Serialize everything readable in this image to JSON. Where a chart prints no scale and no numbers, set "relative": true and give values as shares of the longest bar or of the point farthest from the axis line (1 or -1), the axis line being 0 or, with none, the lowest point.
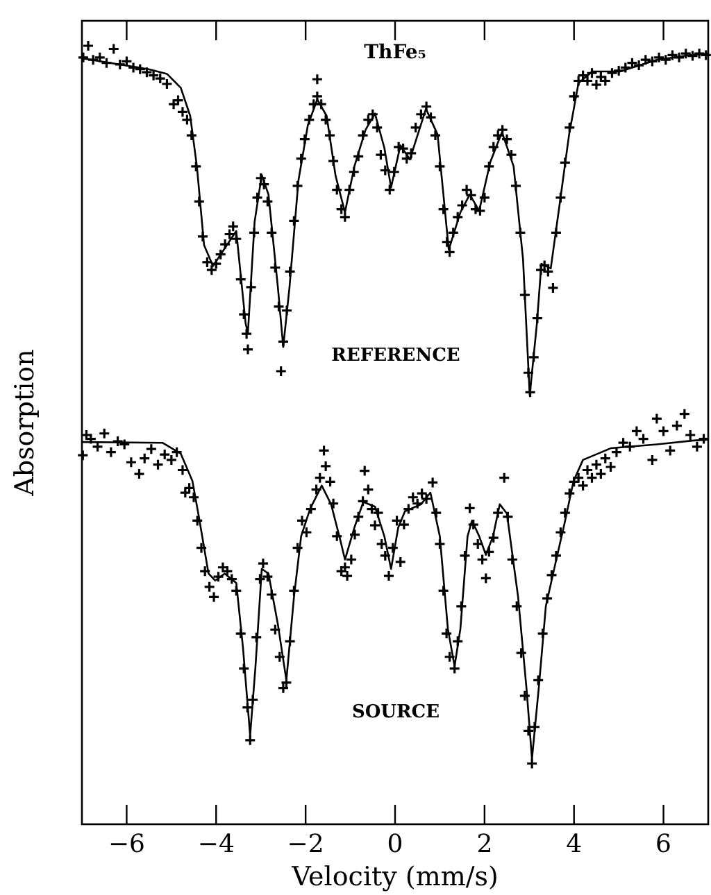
{
  "chart_data": {
    "type": "line",
    "title": "ThFe₅",
    "xlabel": "Velocity (mm/s)",
    "ylabel": "Absorption",
    "relative": true,
    "xlim": [
      -7,
      7
    ],
    "xticks": [
      {
        "value": -6,
        "label": "−6"
      },
      {
        "value": -4,
        "label": "−4"
      },
      {
        "value": -2,
        "label": "−2"
      },
      0,
      2,
      4,
      6
    ],
    "annotations": [
      "REFERENCE",
      "SOURCE"
    ],
    "series": [
      {
        "color": "#000000",
        "marker": "none",
        "x": [
          -7.0,
          -5.51,
          -5.1,
          -4.79,
          -4.58,
          -4.43,
          -4.27,
          -4.07,
          -3.76,
          -3.55,
          -3.34,
          -3.29,
          -3.14,
          -2.98,
          -2.83,
          -2.62,
          -2.5,
          -2.36,
          -2.16,
          -1.95,
          -1.74,
          -1.53,
          -1.33,
          -1.12,
          -0.91,
          -0.66,
          -0.45,
          -0.24,
          -0.09,
          0.12,
          0.33,
          0.69,
          0.95,
          1.2,
          1.46,
          1.67,
          1.88,
          2.13,
          2.39,
          2.65,
          2.86,
          3.01,
          3.17,
          3.27,
          3.48,
          3.68,
          3.89,
          4.1,
          4.41,
          5.03,
          5.85,
          6.58,
          7.0
        ],
        "values": [
          0.984,
          0.97,
          0.964,
          0.946,
          0.91,
          0.845,
          0.744,
          0.717,
          0.744,
          0.762,
          0.643,
          0.631,
          0.774,
          0.834,
          0.809,
          0.69,
          0.613,
          0.69,
          0.827,
          0.898,
          0.931,
          0.91,
          0.833,
          0.786,
          0.845,
          0.892,
          0.913,
          0.869,
          0.818,
          0.872,
          0.854,
          0.919,
          0.886,
          0.738,
          0.786,
          0.809,
          0.788,
          0.851,
          0.889,
          0.845,
          0.726,
          0.551,
          0.643,
          0.72,
          0.714,
          0.797,
          0.886,
          0.952,
          0.967,
          0.967,
          0.982,
          0.988,
          0.99
        ]
      },
      {
        "type": "scatter",
        "color": "#000000",
        "marker": "cross",
        "x": [
          -6.97,
          -6.86,
          -6.75,
          -6.6,
          -6.45,
          -6.29,
          -6.15,
          -6.0,
          -5.85,
          -5.7,
          -5.55,
          -5.4,
          -5.25,
          -5.1,
          -4.95,
          -4.85,
          -4.75,
          -4.65,
          -4.55,
          -4.45,
          -4.38,
          -4.3,
          -4.2,
          -4.1,
          -4.0,
          -3.9,
          -3.8,
          -3.7,
          -3.62,
          -3.55,
          -3.45,
          -3.38,
          -3.32,
          -3.29,
          -3.22,
          -3.15,
          -3.08,
          -3.0,
          -2.93,
          -2.85,
          -2.76,
          -2.68,
          -2.6,
          -2.55,
          -2.5,
          -2.42,
          -2.35,
          -2.26,
          -2.18,
          -2.1,
          -2.02,
          -1.92,
          -1.82,
          -1.74,
          -1.74,
          -1.65,
          -1.55,
          -1.46,
          -1.38,
          -1.3,
          -1.2,
          -1.12,
          -1.02,
          -0.92,
          -0.82,
          -0.72,
          -0.6,
          -0.5,
          -0.4,
          -0.32,
          -0.22,
          -0.12,
          -0.02,
          0.08,
          0.18,
          0.26,
          0.36,
          0.46,
          0.58,
          0.7,
          0.8,
          0.9,
          1.0,
          1.08,
          1.16,
          1.22,
          1.3,
          1.4,
          1.5,
          1.6,
          1.7,
          1.8,
          1.9,
          2.0,
          2.1,
          2.2,
          2.3,
          2.4,
          2.5,
          2.6,
          2.7,
          2.8,
          2.9,
          2.98,
          3.02,
          3.1,
          3.18,
          3.26,
          3.34,
          3.42,
          3.53,
          3.6,
          3.7,
          3.8,
          3.9,
          4.0,
          4.1,
          4.2,
          4.3,
          4.4,
          4.5,
          4.6,
          4.7,
          4.85,
          5.0,
          5.15,
          5.3,
          5.45,
          5.6,
          5.75,
          5.9,
          6.05,
          6.2,
          6.35,
          6.5,
          6.65,
          6.8,
          6.95
        ],
        "values": [
          0.985,
          1,
          0.982,
          0.985,
          0.978,
          0.996,
          0.976,
          0.98,
          0.972,
          0.97,
          0.966,
          0.962,
          0.958,
          0.951,
          0.925,
          0.93,
          0.915,
          0.905,
          0.885,
          0.845,
          0.8,
          0.755,
          0.722,
          0.712,
          0.72,
          0.732,
          0.745,
          0.758,
          0.768,
          0.752,
          0.7,
          0.655,
          0.63,
          0.61,
          0.69,
          0.76,
          0.805,
          0.83,
          0.822,
          0.8,
          0.76,
          0.715,
          0.665,
          0.582,
          0.62,
          0.66,
          0.71,
          0.775,
          0.82,
          0.855,
          0.88,
          0.905,
          0.925,
          0.957,
          0.935,
          0.925,
          0.905,
          0.885,
          0.852,
          0.815,
          0.79,
          0.78,
          0.815,
          0.838,
          0.858,
          0.885,
          0.905,
          0.912,
          0.895,
          0.86,
          0.84,
          0.815,
          0.838,
          0.87,
          0.868,
          0.855,
          0.862,
          0.895,
          0.912,
          0.922,
          0.908,
          0.885,
          0.845,
          0.79,
          0.748,
          0.735,
          0.76,
          0.78,
          0.795,
          0.815,
          0.808,
          0.79,
          0.788,
          0.805,
          0.845,
          0.87,
          0.885,
          0.892,
          0.88,
          0.86,
          0.82,
          0.76,
          0.68,
          0.58,
          0.555,
          0.6,
          0.65,
          0.712,
          0.718,
          0.71,
          0.689,
          0.76,
          0.805,
          0.85,
          0.895,
          0.935,
          0.955,
          0.962,
          0.955,
          0.965,
          0.95,
          0.96,
          0.955,
          0.965,
          0.968,
          0.972,
          0.978,
          0.975,
          0.982,
          0.98,
          0.985,
          0.982,
          0.988,
          0.985,
          0.99,
          0.987,
          0.99,
          0.988
        ]
      },
      {
        "color": "#000000",
        "marker": "none",
        "x": [
          -7.0,
          -5.2,
          -4.79,
          -4.53,
          -4.38,
          -4.17,
          -4.02,
          -3.81,
          -3.55,
          -3.4,
          -3.24,
          -3.12,
          -2.98,
          -2.83,
          -2.62,
          -2.43,
          -2.26,
          -2.1,
          -1.9,
          -1.64,
          -1.43,
          -1.22,
          -1.12,
          -0.91,
          -0.71,
          -0.45,
          -0.24,
          -0.09,
          0.07,
          0.22,
          0.58,
          0.79,
          1.0,
          1.18,
          1.33,
          1.46,
          1.62,
          1.72,
          1.88,
          2.03,
          2.19,
          2.34,
          2.5,
          2.75,
          2.94,
          3.06,
          3.22,
          3.37,
          3.58,
          3.79,
          3.99,
          4.2,
          4.82,
          5.85,
          6.68,
          7.0
        ],
        "values": [
          0.491,
          0.49,
          0.476,
          0.441,
          0.393,
          0.322,
          0.313,
          0.322,
          0.31,
          0.227,
          0.114,
          0.203,
          0.328,
          0.322,
          0.257,
          0.185,
          0.292,
          0.37,
          0.405,
          0.435,
          0.411,
          0.364,
          0.34,
          0.381,
          0.414,
          0.408,
          0.37,
          0.328,
          0.381,
          0.402,
          0.411,
          0.426,
          0.37,
          0.251,
          0.203,
          0.251,
          0.37,
          0.39,
          0.37,
          0.346,
          0.37,
          0.411,
          0.399,
          0.292,
          0.173,
          0.084,
          0.18,
          0.28,
          0.334,
          0.387,
          0.441,
          0.468,
          0.483,
          0.488,
          0.493,
          0.494
        ]
      },
      {
        "type": "scatter",
        "color": "#000000",
        "marker": "cross",
        "x": [
          -6.98,
          -6.9,
          -6.8,
          -6.65,
          -6.5,
          -6.35,
          -6.2,
          -6.05,
          -5.9,
          -5.72,
          -5.6,
          -5.45,
          -5.3,
          -5.15,
          -5.0,
          -4.88,
          -4.75,
          -4.69,
          -4.6,
          -4.5,
          -4.42,
          -4.33,
          -4.25,
          -4.15,
          -4.05,
          -3.95,
          -3.85,
          -3.75,
          -3.65,
          -3.55,
          -3.45,
          -3.38,
          -3.3,
          -3.24,
          -3.18,
          -3.1,
          -3.02,
          -2.95,
          -2.85,
          -2.76,
          -2.68,
          -2.58,
          -2.5,
          -2.43,
          -2.35,
          -2.26,
          -2.18,
          -2.08,
          -1.98,
          -1.88,
          -1.76,
          -1.68,
          -1.59,
          -1.55,
          -1.45,
          -1.38,
          -1.3,
          -1.2,
          -1.12,
          -1.07,
          -0.98,
          -0.9,
          -0.82,
          -0.72,
          -0.68,
          -0.6,
          -0.52,
          -0.45,
          -0.38,
          -0.3,
          -0.22,
          -0.14,
          -0.05,
          0.04,
          0.12,
          0.2,
          0.3,
          0.4,
          0.5,
          0.6,
          0.7,
          0.84,
          0.92,
          1.0,
          1.08,
          1.15,
          1.22,
          1.33,
          1.4,
          1.48,
          1.56,
          1.67,
          1.75,
          1.85,
          1.95,
          2.03,
          2.1,
          2.2,
          2.3,
          2.44,
          2.52,
          2.62,
          2.72,
          2.82,
          2.9,
          2.98,
          3.06,
          3.12,
          3.2,
          3.3,
          3.4,
          3.5,
          3.6,
          3.7,
          3.8,
          3.9,
          4.0,
          4.1,
          4.2,
          4.3,
          4.4,
          4.5,
          4.6,
          4.7,
          4.82,
          4.95,
          5.1,
          5.25,
          5.4,
          5.55,
          5.75,
          5.85,
          6.0,
          6.15,
          6.3,
          6.47,
          6.6,
          6.75,
          6.9
        ],
        "values": [
          0.474,
          0.5,
          0.495,
          0.485,
          0.502,
          0.478,
          0.492,
          0.488,
          0.465,
          0.45,
          0.47,
          0.482,
          0.462,
          0.475,
          0.468,
          0.478,
          0.455,
          0.426,
          0.432,
          0.42,
          0.39,
          0.355,
          0.325,
          0.305,
          0.292,
          0.318,
          0.33,
          0.325,
          0.315,
          0.3,
          0.245,
          0.2,
          0.15,
          0.108,
          0.16,
          0.24,
          0.315,
          0.335,
          0.318,
          0.295,
          0.25,
          0.215,
          0.175,
          0.182,
          0.235,
          0.3,
          0.355,
          0.39,
          0.375,
          0.405,
          0.43,
          0.445,
          0.48,
          0.46,
          0.44,
          0.412,
          0.37,
          0.325,
          0.33,
          0.319,
          0.34,
          0.372,
          0.395,
          0.415,
          0.454,
          0.43,
          0.405,
          0.384,
          0.4,
          0.36,
          0.345,
          0.319,
          0.355,
          0.39,
          0.337,
          0.385,
          0.405,
          0.42,
          0.412,
          0.425,
          0.418,
          0.439,
          0.4,
          0.36,
          0.3,
          0.245,
          0.215,
          0.2,
          0.235,
          0.28,
          0.345,
          0.406,
          0.385,
          0.36,
          0.34,
          0.316,
          0.35,
          0.368,
          0.4,
          0.445,
          0.395,
          0.34,
          0.28,
          0.22,
          0.165,
          0.12,
          0.078,
          0.125,
          0.185,
          0.245,
          0.29,
          0.32,
          0.345,
          0.375,
          0.4,
          0.425,
          0.44,
          0.445,
          0.435,
          0.455,
          0.445,
          0.462,
          0.45,
          0.47,
          0.459,
          0.478,
          0.49,
          0.485,
          0.505,
          0.495,
          0.468,
          0.521,
          0.505,
          0.48,
          0.512,
          0.527,
          0.5,
          0.485,
          0.495
        ]
      }
    ]
  }
}
